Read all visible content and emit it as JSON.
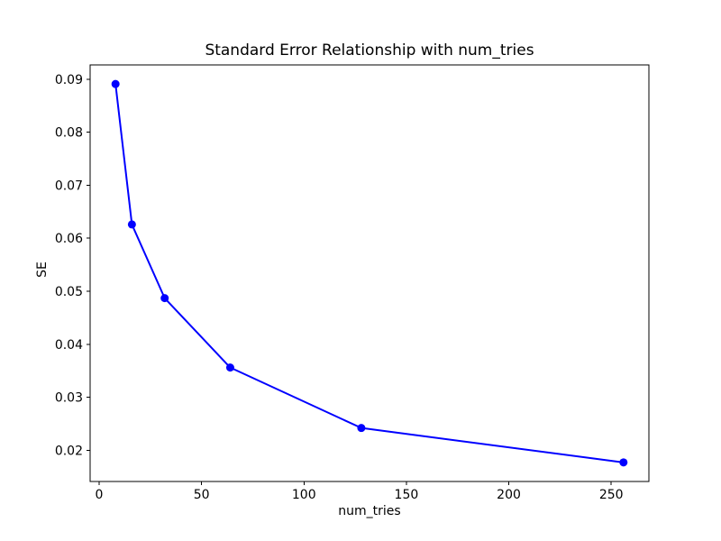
{
  "chart_data": {
    "type": "line",
    "title": "Standard Error Relationship with num_tries",
    "xlabel": "num_tries",
    "ylabel": "SE",
    "x": [
      8,
      16,
      32,
      64,
      128,
      256
    ],
    "y": [
      0.0891,
      0.0626,
      0.0487,
      0.0356,
      0.0242,
      0.0177
    ],
    "xticks": [
      0,
      50,
      100,
      150,
      200,
      250
    ],
    "yticks": [
      0.02,
      0.03,
      0.04,
      0.05,
      0.06,
      0.07,
      0.08,
      0.09
    ],
    "ytick_decimals": 2,
    "xlim": [
      -4.4,
      268.4
    ],
    "ylim": [
      0.0141,
      0.0927
    ],
    "grid": false,
    "legend": null,
    "line_color": "#0000ff",
    "marker": "o",
    "marker_color": "#0000ff",
    "axes_color": "#000000",
    "background_color": "#ffffff"
  }
}
